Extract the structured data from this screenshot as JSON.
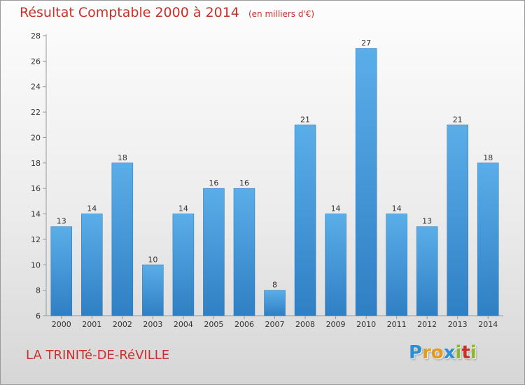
{
  "chart_data": {
    "type": "bar",
    "title": "Résultat Comptable 2000 à 2014",
    "subtitle": "(en milliers d'€)",
    "categories": [
      "2000",
      "2001",
      "2002",
      "2003",
      "2004",
      "2005",
      "2006",
      "2007",
      "2008",
      "2009",
      "2010",
      "2011",
      "2012",
      "2013",
      "2014"
    ],
    "values": [
      13,
      14,
      18,
      10,
      14,
      16,
      16,
      8,
      21,
      14,
      27,
      14,
      13,
      21,
      18
    ],
    "ylim": [
      6,
      28
    ],
    "yticks": [
      6,
      8,
      10,
      12,
      14,
      16,
      18,
      20,
      22,
      24,
      26,
      28
    ],
    "grid": false,
    "legend": "none",
    "bar_color": "#4a9de0"
  },
  "footer": {
    "commune": "LA TRINITé-DE-RéVILLE",
    "logo_letters": [
      "P",
      "r",
      "o",
      "x",
      "i",
      "t",
      "i"
    ],
    "logo_colors": [
      "#2b8fd6",
      "#e59a1b",
      "#e59a1b",
      "#2b8fd6",
      "#8ab82a",
      "#c8312a",
      "#8ab82a"
    ]
  }
}
